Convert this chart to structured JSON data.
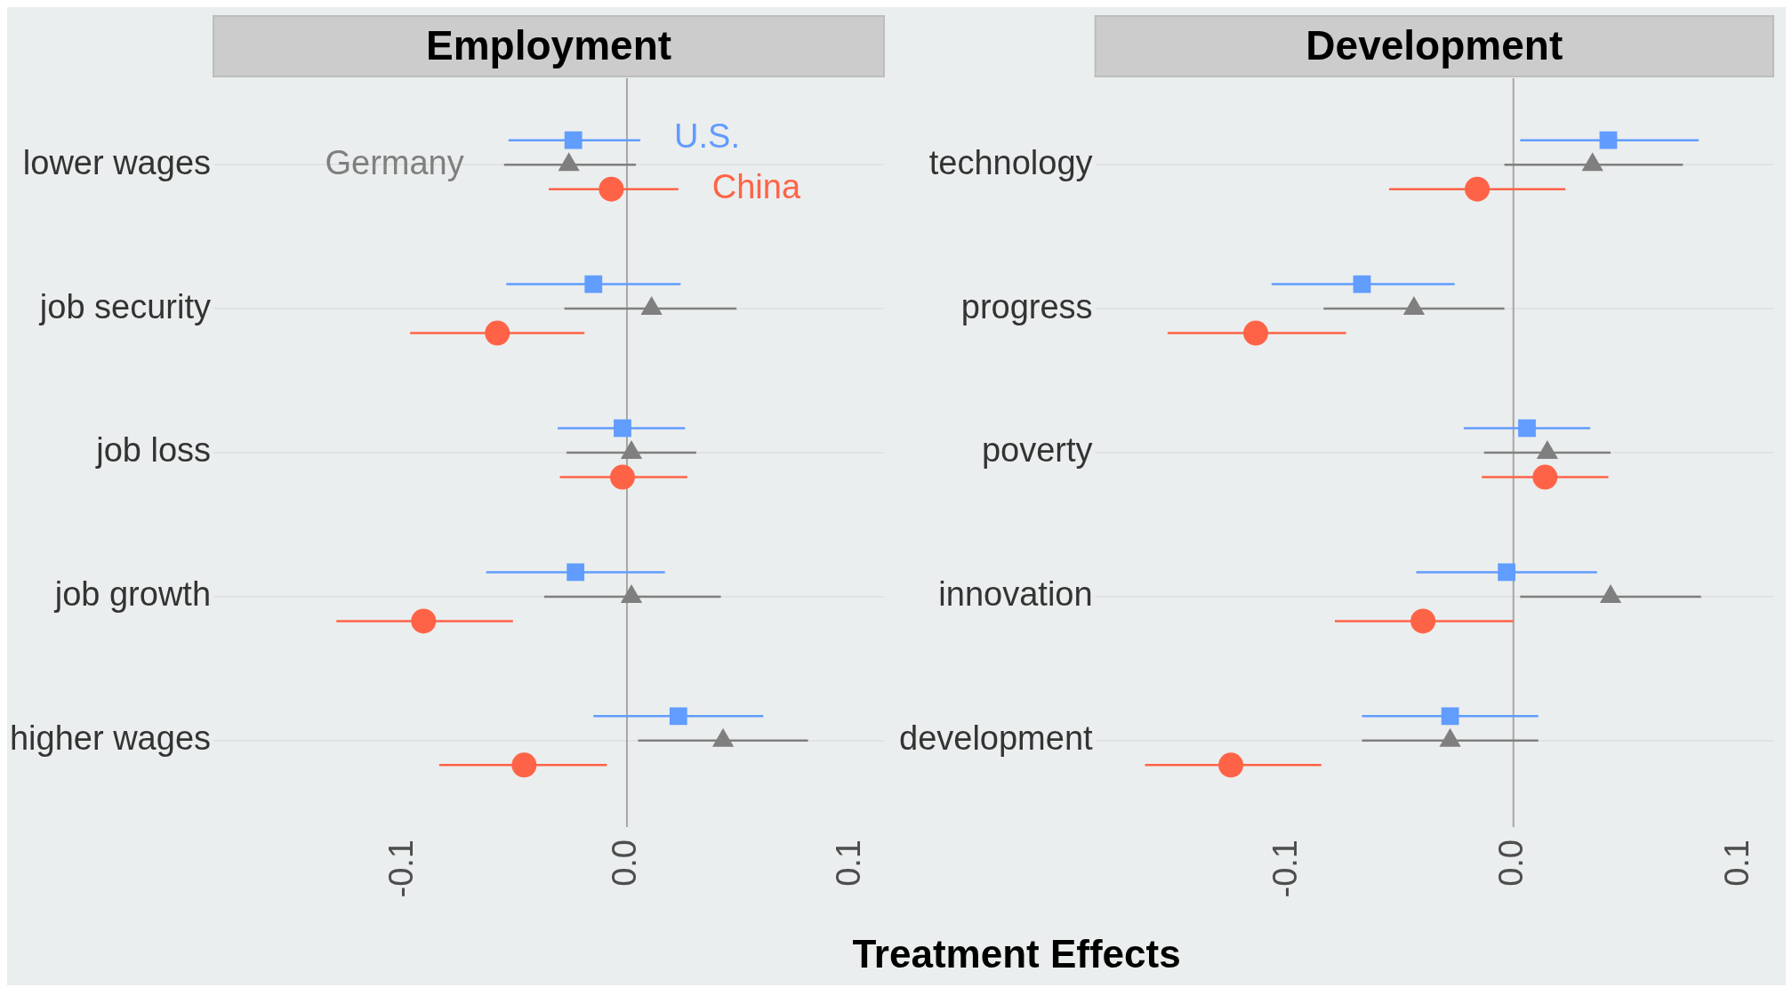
{
  "chart_data": [
    {
      "type": "scatter",
      "title": "Employment",
      "xlabel": "Treatment Effects",
      "orientation": "horizontal",
      "categories": [
        "lower wages",
        "job security",
        "job loss",
        "job growth",
        "higher wages"
      ],
      "xlim": [
        -0.185,
        0.115
      ],
      "xticks": [
        {
          "value": -0.1,
          "label": "-0.1"
        },
        {
          "value": 0,
          "label": "0.0"
        },
        {
          "value": 0.1,
          "label": "0.1"
        }
      ],
      "grid": "y",
      "legend": false,
      "ref_lines": [
        {
          "axis": "x",
          "value": 0,
          "color": "#a6a6a6"
        }
      ],
      "series": [
        {
          "name": "U.S.",
          "color": "#619cff",
          "marker": "square",
          "values": [
            -0.024,
            -0.015,
            -0.002,
            -0.023,
            0.023
          ],
          "errors": [
            [
              -0.053,
              0.006
            ],
            [
              -0.054,
              0.024
            ],
            [
              -0.031,
              0.026
            ],
            [
              -0.063,
              0.017
            ],
            [
              -0.015,
              0.061
            ]
          ]
        },
        {
          "name": "Germany",
          "color": "#7f7f7f",
          "marker": "triangle",
          "values": [
            -0.026,
            0.011,
            0.002,
            0.002,
            0.043
          ],
          "errors": [
            [
              -0.055,
              0.004
            ],
            [
              -0.028,
              0.049
            ],
            [
              -0.027,
              0.031
            ],
            [
              -0.037,
              0.042
            ],
            [
              0.005,
              0.081
            ]
          ]
        },
        {
          "name": "China",
          "color": "#ff6347",
          "marker": "circle",
          "values": [
            -0.007,
            -0.058,
            -0.002,
            -0.091,
            -0.046
          ],
          "errors": [
            [
              -0.035,
              0.023
            ],
            [
              -0.097,
              -0.019
            ],
            [
              -0.03,
              0.027
            ],
            [
              -0.13,
              -0.051
            ],
            [
              -0.084,
              -0.009
            ]
          ]
        }
      ]
    },
    {
      "type": "scatter",
      "title": "Development",
      "orientation": "horizontal",
      "categories": [
        "technology",
        "progress",
        "poverty",
        "innovation",
        "development"
      ],
      "xlim": [
        -0.185,
        0.115
      ],
      "xticks": [
        {
          "value": -0.1,
          "label": "-0.1"
        },
        {
          "value": 0,
          "label": "0.0"
        },
        {
          "value": 0.1,
          "label": "0.1"
        }
      ],
      "grid": "y",
      "legend": false,
      "ref_lines": [
        {
          "axis": "x",
          "value": 0,
          "color": "#a6a6a6"
        }
      ],
      "series": [
        {
          "color": "#619cff",
          "marker": "square",
          "values": [
            0.042,
            -0.067,
            0.006,
            -0.003,
            -0.028
          ],
          "errors": [
            [
              0.003,
              0.082
            ],
            [
              -0.107,
              -0.026
            ],
            [
              -0.022,
              0.034
            ],
            [
              -0.043,
              0.037
            ],
            [
              -0.067,
              0.011
            ]
          ]
        },
        {
          "color": "#7f7f7f",
          "marker": "triangle",
          "values": [
            0.035,
            -0.044,
            0.015,
            0.043,
            -0.028
          ],
          "errors": [
            [
              -0.004,
              0.075
            ],
            [
              -0.084,
              -0.004
            ],
            [
              -0.013,
              0.043
            ],
            [
              0.003,
              0.083
            ],
            [
              -0.067,
              0.011
            ]
          ]
        },
        {
          "color": "#ff6347",
          "marker": "circle",
          "values": [
            -0.016,
            -0.114,
            0.014,
            -0.04,
            -0.125
          ],
          "errors": [
            [
              -0.055,
              0.023
            ],
            [
              -0.153,
              -0.074
            ],
            [
              -0.014,
              0.042
            ],
            [
              -0.079,
              0.0
            ],
            [
              -0.163,
              -0.085
            ]
          ]
        }
      ]
    }
  ]
}
